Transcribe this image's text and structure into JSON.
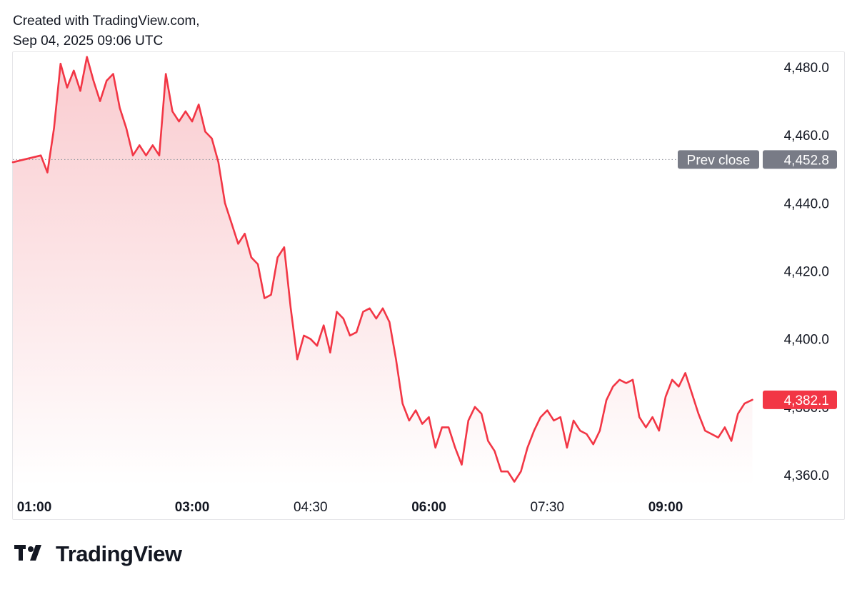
{
  "header": {
    "line1": "Created with TradingView.com,",
    "line2": "Sep 04, 2025 09:06 UTC"
  },
  "brand": {
    "name": "TradingView",
    "icon": "tradingview-logo-icon"
  },
  "colors": {
    "line": "#f23645",
    "fill_top": "#f9c9cd",
    "fill_bottom": "#ffffff",
    "prev_close_badge": "#787b86",
    "last_badge": "#f23645",
    "grid_dot": "#9598a1"
  },
  "chart_data": {
    "type": "area",
    "title": "",
    "xlabel": "",
    "ylabel": "",
    "ylim": [
      4357,
      4484
    ],
    "y_ticks": [
      {
        "value": 4480,
        "label": "4,480.0"
      },
      {
        "value": 4460,
        "label": "4,460.0"
      },
      {
        "value": 4440,
        "label": "4,440.0"
      },
      {
        "value": 4420,
        "label": "4,420.0"
      },
      {
        "value": 4400,
        "label": "4,400.0"
      },
      {
        "value": 4380,
        "label": "4,380.0"
      },
      {
        "value": 4360,
        "label": "4,360.0"
      }
    ],
    "x_ticks": [
      {
        "time": "01:00",
        "label": "01:00",
        "bold": true
      },
      {
        "time": "03:00",
        "label": "03:00",
        "bold": true
      },
      {
        "time": "04:30",
        "label": "04:30",
        "bold": false
      },
      {
        "time": "06:00",
        "label": "06:00",
        "bold": true
      },
      {
        "time": "07:30",
        "label": "07:30",
        "bold": false
      },
      {
        "time": "09:00",
        "label": "09:00",
        "bold": true
      }
    ],
    "x_domain": [
      "01:00",
      "10:06"
    ],
    "prev_close": {
      "label": "Prev close",
      "value": 4452.8,
      "value_label": "4,452.8"
    },
    "last": {
      "value": 4382.1,
      "value_label": "4,382.1"
    },
    "series": [
      {
        "x": [
          "01:00",
          "01:05",
          "01:10",
          "01:15",
          "01:20",
          "01:25",
          "01:30",
          "01:35",
          "01:40",
          "01:45",
          "01:50",
          "01:55",
          "02:00",
          "02:05",
          "02:10",
          "02:15",
          "02:20",
          "02:25",
          "02:30",
          "02:35",
          "02:40",
          "02:45",
          "02:50",
          "02:55",
          "03:00",
          "03:05",
          "03:10",
          "03:15",
          "03:20",
          "03:25",
          "03:30",
          "03:35",
          "03:40",
          "03:45",
          "03:50",
          "03:55",
          "04:00",
          "04:05",
          "04:10",
          "04:15",
          "04:20",
          "04:25",
          "04:30",
          "04:35",
          "04:40",
          "04:45",
          "04:50",
          "04:55",
          "05:00",
          "05:05",
          "05:10",
          "05:15",
          "05:20",
          "05:25",
          "05:30",
          "05:35",
          "05:40",
          "05:45",
          "05:50",
          "05:55",
          "06:00",
          "06:05",
          "06:10",
          "06:15",
          "06:20",
          "06:25",
          "06:30",
          "06:35",
          "06:40",
          "06:45",
          "06:50",
          "06:55",
          "07:00",
          "07:05",
          "07:10",
          "07:15",
          "07:20",
          "07:25",
          "07:30",
          "07:35",
          "07:40",
          "07:45",
          "07:50",
          "07:55",
          "08:00",
          "08:05",
          "08:10",
          "08:15",
          "08:20",
          "08:25",
          "08:30",
          "08:35",
          "08:40",
          "08:45",
          "08:50",
          "08:55",
          "09:00",
          "09:05",
          "09:10",
          "09:15",
          "09:20",
          "09:25",
          "09:30",
          "09:35",
          "09:40",
          "09:45",
          "09:50",
          "09:55",
          "10:00",
          "10:06"
        ],
        "values": [
          4452,
          4454,
          4449,
          4462,
          4481,
          4474,
          4479,
          4473,
          4483,
          4476,
          4470,
          4476,
          4478,
          4468,
          4462,
          4454,
          4457,
          4454,
          4457,
          4454,
          4478,
          4467,
          4464,
          4467,
          4464,
          4469,
          4461,
          4459,
          4452,
          4440,
          4434,
          4428,
          4431,
          4424,
          4422,
          4412,
          4413,
          4424,
          4427,
          4409,
          4394,
          4401,
          4400,
          4398,
          4404,
          4396,
          4408,
          4406,
          4401,
          4402,
          4408,
          4409,
          4406,
          4409,
          4405,
          4394,
          4381,
          4376,
          4379,
          4375,
          4377,
          4368,
          4374,
          4374,
          4368,
          4363,
          4376,
          4380,
          4378,
          4370,
          4367,
          4361,
          4361,
          4358,
          4361,
          4368,
          4373,
          4377,
          4379,
          4376,
          4377,
          4368,
          4376,
          4373,
          4372,
          4369,
          4373,
          4382,
          4386,
          4388,
          4387,
          4388,
          4377,
          4374,
          4377,
          4373,
          4383,
          4388,
          4386,
          4390,
          4384,
          4378,
          4373,
          4372,
          4371,
          4374,
          4370,
          4378,
          4381,
          4382.1
        ]
      }
    ]
  }
}
